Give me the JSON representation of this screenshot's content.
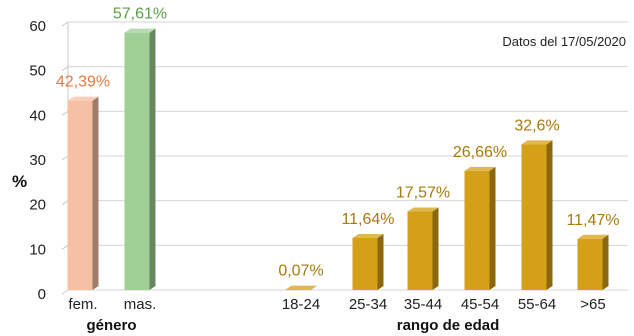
{
  "chart_data": {
    "type": "bar",
    "ylabel": "%",
    "ylim": [
      0,
      60
    ],
    "yticks": [
      0,
      10,
      20,
      30,
      40,
      50,
      60
    ],
    "grid": true,
    "annotation": "Datos del 17/05/2020",
    "groups": [
      {
        "name": "género",
        "categories": [
          "fem.",
          "mas."
        ],
        "values": [
          42.39,
          57.61
        ],
        "labels": [
          "42,39%",
          "57,61%"
        ],
        "colors": [
          "#f5c0a3",
          "#9fcf95"
        ],
        "label_colors": [
          "#e07a3f",
          "#5aa048"
        ]
      },
      {
        "name": "rango de edad",
        "categories": [
          "18-24",
          "25-34",
          "35-44",
          "45-54",
          "55-64",
          ">65"
        ],
        "values": [
          0.07,
          11.64,
          17.57,
          26.66,
          32.6,
          11.47
        ],
        "labels": [
          "0,07%",
          "11,64%",
          "17,57%",
          "26,66%",
          "32,6%",
          "11,47%"
        ],
        "color": "#d4a017",
        "label_color": "#a87a0c"
      }
    ]
  }
}
